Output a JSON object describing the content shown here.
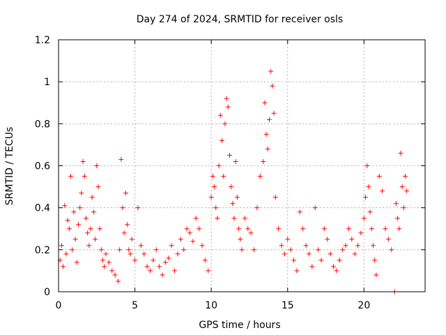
{
  "chart_data": {
    "type": "scatter",
    "title": "Day 274 of 2024, SRMTID for receiver osls",
    "xlabel": "GPS time / hours",
    "ylabel": "SRMTID / TECUs",
    "xlim": [
      0,
      24
    ],
    "ylim": [
      0,
      1.2
    ],
    "xticks": [
      0,
      5,
      10,
      15,
      20
    ],
    "xtick_labels": [
      "0",
      "5",
      "10",
      "15",
      "20"
    ],
    "yticks": [
      0,
      0.2,
      0.4,
      0.6,
      0.8,
      1.0,
      1.2
    ],
    "ytick_labels": [
      "0",
      "0.2",
      "0.4",
      "0.6",
      "0.8",
      "1",
      "1.2"
    ],
    "grid": true,
    "marker": "+",
    "color": "#ff0000",
    "series": [
      {
        "name": "SRMTID",
        "x": [
          0.1,
          0.2,
          0.3,
          0.4,
          0.5,
          0.6,
          0.7,
          0.8,
          0.9,
          1.0,
          1.1,
          1.2,
          1.3,
          1.4,
          1.5,
          1.6,
          1.7,
          1.8,
          1.9,
          2.0,
          2.1,
          2.2,
          2.3,
          2.4,
          2.5,
          2.6,
          2.7,
          2.8,
          2.9,
          3.0,
          3.1,
          3.3,
          3.5,
          3.7,
          3.9,
          4.0,
          4.1,
          4.2,
          4.3,
          4.4,
          4.5,
          4.6,
          4.7,
          4.8,
          5.0,
          5.2,
          5.4,
          5.6,
          5.8,
          6.0,
          6.2,
          6.4,
          6.6,
          6.8,
          7.0,
          7.2,
          7.4,
          7.6,
          7.8,
          8.0,
          8.2,
          8.4,
          8.6,
          8.8,
          9.0,
          9.2,
          9.4,
          9.6,
          9.8,
          10.0,
          10.1,
          10.2,
          10.3,
          10.4,
          10.5,
          10.6,
          10.7,
          10.8,
          10.9,
          11.0,
          11.1,
          11.2,
          11.3,
          11.4,
          11.5,
          11.6,
          11.7,
          11.8,
          11.9,
          12.0,
          12.2,
          12.4,
          12.6,
          12.8,
          13.0,
          13.2,
          13.4,
          13.5,
          13.6,
          13.7,
          13.8,
          13.9,
          14.0,
          14.1,
          14.2,
          14.4,
          14.6,
          14.8,
          15.0,
          15.2,
          15.4,
          15.6,
          15.8,
          16.0,
          16.2,
          16.4,
          16.6,
          16.8,
          17.0,
          17.2,
          17.4,
          17.6,
          17.8,
          18.0,
          18.2,
          18.4,
          18.6,
          18.8,
          19.0,
          19.2,
          19.4,
          19.6,
          19.8,
          20.0,
          20.1,
          20.2,
          20.3,
          20.4,
          20.5,
          20.6,
          20.7,
          20.8,
          21.0,
          21.2,
          21.4,
          21.6,
          21.8,
          22.0,
          22.1,
          22.2,
          22.3,
          22.4,
          22.5,
          22.6,
          22.7,
          22.8
        ],
        "y": [
          0.15,
          0.22,
          0.12,
          0.41,
          0.18,
          0.34,
          0.3,
          0.55,
          0.2,
          0.38,
          0.25,
          0.14,
          0.32,
          0.4,
          0.47,
          0.62,
          0.55,
          0.35,
          0.28,
          0.22,
          0.3,
          0.45,
          0.38,
          0.25,
          0.6,
          0.5,
          0.3,
          0.2,
          0.15,
          0.12,
          0.18,
          0.14,
          0.1,
          0.08,
          0.05,
          0.2,
          0.63,
          0.4,
          0.28,
          0.47,
          0.32,
          0.2,
          0.18,
          0.25,
          0.15,
          0.4,
          0.22,
          0.18,
          0.12,
          0.1,
          0.15,
          0.2,
          0.12,
          0.08,
          0.14,
          0.16,
          0.22,
          0.1,
          0.18,
          0.25,
          0.2,
          0.3,
          0.28,
          0.24,
          0.35,
          0.3,
          0.22,
          0.15,
          0.1,
          0.45,
          0.55,
          0.5,
          0.4,
          0.35,
          0.6,
          0.84,
          0.72,
          0.55,
          0.8,
          0.92,
          0.88,
          0.65,
          0.5,
          0.42,
          0.35,
          0.62,
          0.45,
          0.3,
          0.25,
          0.2,
          0.35,
          0.3,
          0.28,
          0.2,
          0.4,
          0.55,
          0.62,
          0.9,
          0.75,
          0.68,
          0.82,
          1.05,
          0.98,
          0.85,
          0.45,
          0.3,
          0.22,
          0.18,
          0.25,
          0.2,
          0.15,
          0.1,
          0.38,
          0.3,
          0.22,
          0.18,
          0.12,
          0.4,
          0.2,
          0.15,
          0.3,
          0.25,
          0.18,
          0.12,
          0.1,
          0.15,
          0.2,
          0.22,
          0.3,
          0.25,
          0.18,
          0.22,
          0.28,
          0.35,
          0.45,
          0.6,
          0.5,
          0.38,
          0.3,
          0.22,
          0.15,
          0.08,
          0.55,
          0.48,
          0.3,
          0.25,
          0.2,
          0.0,
          0.42,
          0.35,
          0.3,
          0.66,
          0.5,
          0.4,
          0.55,
          0.48
        ]
      }
    ]
  }
}
